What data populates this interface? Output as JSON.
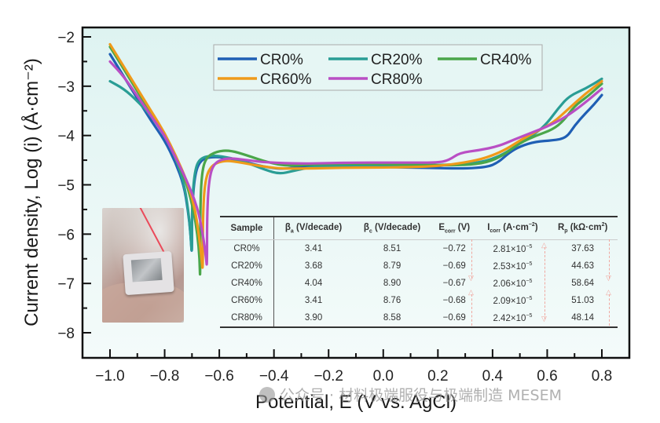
{
  "chart_data": {
    "type": "line",
    "title": "",
    "xlabel": "Potential, E (V vs. AgCl)",
    "ylabel": "Current density, Log (i) (Å·cm⁻²)",
    "xlim": [
      -1.1,
      0.9
    ],
    "ylim": [
      -8.5,
      -1.8
    ],
    "x_ticks": [
      -1.0,
      -0.8,
      -0.6,
      -0.4,
      -0.2,
      0.0,
      0.2,
      0.4,
      0.6,
      0.8
    ],
    "x_tick_labels": [
      "−1.0",
      "−0.8",
      "−0.6",
      "−0.4",
      "−0.2",
      "0.0",
      "0.2",
      "0.4",
      "0.6",
      "0.8"
    ],
    "y_ticks": [
      -2,
      -3,
      -4,
      -5,
      -6,
      -7,
      -8
    ],
    "y_tick_labels": [
      "−2",
      "−3",
      "−4",
      "−5",
      "−6",
      "−7",
      "−8"
    ],
    "grid": false,
    "legend_position": "top-center",
    "series": [
      {
        "name": "CR0%",
        "color": "#1f5fb4",
        "points": [
          [
            -1.0,
            -2.35
          ],
          [
            -0.95,
            -2.8
          ],
          [
            -0.9,
            -3.25
          ],
          [
            -0.85,
            -3.7
          ],
          [
            -0.8,
            -4.1
          ],
          [
            -0.76,
            -4.55
          ],
          [
            -0.73,
            -5.0
          ],
          [
            -0.715,
            -5.5
          ],
          [
            -0.705,
            -6.0
          ],
          [
            -0.7,
            -6.5
          ],
          [
            -0.7,
            -5.5
          ],
          [
            -0.69,
            -4.8
          ],
          [
            -0.67,
            -4.5
          ],
          [
            -0.63,
            -4.43
          ],
          [
            -0.57,
            -4.45
          ],
          [
            -0.5,
            -4.55
          ],
          [
            -0.42,
            -4.65
          ],
          [
            -0.36,
            -4.68
          ],
          [
            -0.3,
            -4.63
          ],
          [
            -0.2,
            -4.62
          ],
          [
            -0.1,
            -4.63
          ],
          [
            0.0,
            -4.64
          ],
          [
            0.1,
            -4.65
          ],
          [
            0.2,
            -4.66
          ],
          [
            0.3,
            -4.67
          ],
          [
            0.38,
            -4.64
          ],
          [
            0.42,
            -4.55
          ],
          [
            0.46,
            -4.35
          ],
          [
            0.5,
            -4.22
          ],
          [
            0.56,
            -4.12
          ],
          [
            0.62,
            -4.1
          ],
          [
            0.67,
            -4.05
          ],
          [
            0.7,
            -3.8
          ],
          [
            0.74,
            -3.55
          ],
          [
            0.77,
            -3.38
          ],
          [
            0.8,
            -3.18
          ]
        ]
      },
      {
        "name": "CR20%",
        "color": "#2a9d95",
        "points": [
          [
            -1.0,
            -2.9
          ],
          [
            -0.95,
            -3.05
          ],
          [
            -0.9,
            -3.3
          ],
          [
            -0.85,
            -3.6
          ],
          [
            -0.8,
            -4.0
          ],
          [
            -0.76,
            -4.45
          ],
          [
            -0.73,
            -4.95
          ],
          [
            -0.715,
            -5.45
          ],
          [
            -0.705,
            -6.0
          ],
          [
            -0.7,
            -6.5
          ],
          [
            -0.7,
            -5.4
          ],
          [
            -0.69,
            -4.7
          ],
          [
            -0.67,
            -4.45
          ],
          [
            -0.62,
            -4.4
          ],
          [
            -0.56,
            -4.45
          ],
          [
            -0.5,
            -4.55
          ],
          [
            -0.43,
            -4.7
          ],
          [
            -0.38,
            -4.78
          ],
          [
            -0.33,
            -4.72
          ],
          [
            -0.25,
            -4.62
          ],
          [
            -0.1,
            -4.6
          ],
          [
            0.0,
            -4.6
          ],
          [
            0.1,
            -4.6
          ],
          [
            0.2,
            -4.6
          ],
          [
            0.3,
            -4.58
          ],
          [
            0.38,
            -4.52
          ],
          [
            0.45,
            -4.35
          ],
          [
            0.5,
            -4.15
          ],
          [
            0.56,
            -3.95
          ],
          [
            0.6,
            -3.75
          ],
          [
            0.64,
            -3.45
          ],
          [
            0.68,
            -3.2
          ],
          [
            0.74,
            -3.05
          ],
          [
            0.8,
            -2.85
          ]
        ]
      },
      {
        "name": "CR40%",
        "color": "#4aa64a",
        "points": [
          [
            -1.0,
            -2.2
          ],
          [
            -0.95,
            -2.65
          ],
          [
            -0.9,
            -3.1
          ],
          [
            -0.85,
            -3.55
          ],
          [
            -0.8,
            -4.0
          ],
          [
            -0.76,
            -4.45
          ],
          [
            -0.72,
            -4.95
          ],
          [
            -0.695,
            -5.5
          ],
          [
            -0.68,
            -6.0
          ],
          [
            -0.672,
            -6.5
          ],
          [
            -0.67,
            -7.0
          ],
          [
            -0.67,
            -5.6
          ],
          [
            -0.665,
            -4.8
          ],
          [
            -0.65,
            -4.45
          ],
          [
            -0.61,
            -4.32
          ],
          [
            -0.56,
            -4.3
          ],
          [
            -0.5,
            -4.4
          ],
          [
            -0.42,
            -4.55
          ],
          [
            -0.35,
            -4.62
          ],
          [
            -0.25,
            -4.58
          ],
          [
            -0.1,
            -4.57
          ],
          [
            0.0,
            -4.58
          ],
          [
            0.1,
            -4.59
          ],
          [
            0.2,
            -4.6
          ],
          [
            0.3,
            -4.6
          ],
          [
            0.38,
            -4.55
          ],
          [
            0.44,
            -4.4
          ],
          [
            0.5,
            -4.15
          ],
          [
            0.56,
            -4.0
          ],
          [
            0.62,
            -3.88
          ],
          [
            0.66,
            -3.7
          ],
          [
            0.7,
            -3.4
          ],
          [
            0.75,
            -3.2
          ],
          [
            0.8,
            -2.95
          ]
        ]
      },
      {
        "name": "CR60%",
        "color": "#ef9a1a",
        "points": [
          [
            -1.0,
            -2.15
          ],
          [
            -0.95,
            -2.6
          ],
          [
            -0.9,
            -3.05
          ],
          [
            -0.85,
            -3.5
          ],
          [
            -0.8,
            -3.95
          ],
          [
            -0.76,
            -4.4
          ],
          [
            -0.72,
            -4.9
          ],
          [
            -0.69,
            -5.45
          ],
          [
            -0.675,
            -6.0
          ],
          [
            -0.665,
            -6.5
          ],
          [
            -0.66,
            -6.8
          ],
          [
            -0.66,
            -5.6
          ],
          [
            -0.652,
            -4.9
          ],
          [
            -0.63,
            -4.6
          ],
          [
            -0.58,
            -4.5
          ],
          [
            -0.52,
            -4.55
          ],
          [
            -0.45,
            -4.62
          ],
          [
            -0.38,
            -4.67
          ],
          [
            -0.3,
            -4.67
          ],
          [
            -0.2,
            -4.66
          ],
          [
            -0.1,
            -4.65
          ],
          [
            0.0,
            -4.65
          ],
          [
            0.1,
            -4.64
          ],
          [
            0.2,
            -4.62
          ],
          [
            0.3,
            -4.55
          ],
          [
            0.38,
            -4.45
          ],
          [
            0.45,
            -4.28
          ],
          [
            0.5,
            -4.1
          ],
          [
            0.56,
            -3.92
          ],
          [
            0.62,
            -3.75
          ],
          [
            0.68,
            -3.45
          ],
          [
            0.74,
            -3.15
          ],
          [
            0.8,
            -2.9
          ]
        ]
      },
      {
        "name": "CR80%",
        "color": "#b94fc4",
        "points": [
          [
            -1.0,
            -2.5
          ],
          [
            -0.95,
            -2.8
          ],
          [
            -0.9,
            -3.2
          ],
          [
            -0.85,
            -3.6
          ],
          [
            -0.8,
            -4.0
          ],
          [
            -0.76,
            -4.45
          ],
          [
            -0.72,
            -4.9
          ],
          [
            -0.68,
            -5.45
          ],
          [
            -0.66,
            -6.0
          ],
          [
            -0.648,
            -6.5
          ],
          [
            -0.645,
            -6.7
          ],
          [
            -0.645,
            -5.6
          ],
          [
            -0.638,
            -4.9
          ],
          [
            -0.62,
            -4.55
          ],
          [
            -0.57,
            -4.45
          ],
          [
            -0.5,
            -4.5
          ],
          [
            -0.42,
            -4.55
          ],
          [
            -0.3,
            -4.57
          ],
          [
            -0.2,
            -4.56
          ],
          [
            -0.1,
            -4.55
          ],
          [
            0.0,
            -4.55
          ],
          [
            0.1,
            -4.55
          ],
          [
            0.2,
            -4.55
          ],
          [
            0.24,
            -4.5
          ],
          [
            0.28,
            -4.35
          ],
          [
            0.35,
            -4.3
          ],
          [
            0.42,
            -4.22
          ],
          [
            0.48,
            -4.08
          ],
          [
            0.54,
            -3.95
          ],
          [
            0.6,
            -3.82
          ],
          [
            0.66,
            -3.65
          ],
          [
            0.72,
            -3.42
          ],
          [
            0.8,
            -3.05
          ]
        ]
      }
    ],
    "inset_table": {
      "headers": [
        "Sample",
        "βa (V/decade)",
        "βc (V/decade)",
        "Ecorr (V)",
        "Icorr (A·cm⁻²)",
        "Rp (kΩ·cm²)"
      ],
      "rows": [
        [
          "CR0%",
          "3.41",
          "8.51",
          "−0.72",
          "2.81×10⁻⁵",
          "37.63"
        ],
        [
          "CR20%",
          "3.68",
          "8.79",
          "−0.69",
          "2.53×10⁻⁵",
          "44.63"
        ],
        [
          "CR40%",
          "4.04",
          "8.90",
          "−0.67",
          "2.06×10⁻⁵",
          "58.64"
        ],
        [
          "CR60%",
          "3.41",
          "8.76",
          "−0.68",
          "2.09×10⁻⁵",
          "51.03"
        ],
        [
          "CR80%",
          "3.90",
          "8.58",
          "−0.69",
          "2.42×10⁻⁵",
          "48.14"
        ]
      ]
    }
  },
  "table_header": {
    "sample": "Sample",
    "ba_sym": "β",
    "ba_sub": "a",
    "ba_unit": " (V/decade)",
    "bc_sym": "β",
    "bc_sub": "c",
    "bc_unit": " (V/decade)",
    "ec_sym": "E",
    "ec_sub": "corr",
    "ec_unit": " (V)",
    "ic_sym": "I",
    "ic_sub": "corr",
    "ic_unit": " (A·cm",
    "ic_sup": "−2",
    "ic_close": ")",
    "rp_sym": "R",
    "rp_sub": "p",
    "rp_unit": " (kΩ·cm",
    "rp_sup": "2",
    "rp_close": ")"
  },
  "table_rows": [
    {
      "sample": "CR0%",
      "ba": "3.41",
      "bc": "8.51",
      "ecorr": "−0.72",
      "icorr_m": "2.81×10",
      "icorr_e": "−5",
      "rp": "37.63"
    },
    {
      "sample": "CR20%",
      "ba": "3.68",
      "bc": "8.79",
      "ecorr": "−0.69",
      "icorr_m": "2.53×10",
      "icorr_e": "−5",
      "rp": "44.63"
    },
    {
      "sample": "CR40%",
      "ba": "4.04",
      "bc": "8.90",
      "ecorr": "−0.67",
      "icorr_m": "2.06×10",
      "icorr_e": "−5",
      "rp": "58.64"
    },
    {
      "sample": "CR60%",
      "ba": "3.41",
      "bc": "8.76",
      "ecorr": "−0.68",
      "icorr_m": "2.09×10",
      "icorr_e": "−5",
      "rp": "51.03"
    },
    {
      "sample": "CR80%",
      "ba": "3.90",
      "bc": "8.58",
      "ecorr": "−0.69",
      "icorr_m": "2.42×10",
      "icorr_e": "−5",
      "rp": "48.14"
    }
  ],
  "inset_photo": {
    "description": "sample-photo"
  },
  "watermark": {
    "text": "公众号 · 材料极端服役与极端制造 MESEM"
  },
  "colors": {
    "plot_bg_top": "#def3f1",
    "plot_bg_bottom": "#f3faf9",
    "arrow": "#f0a8a0"
  }
}
